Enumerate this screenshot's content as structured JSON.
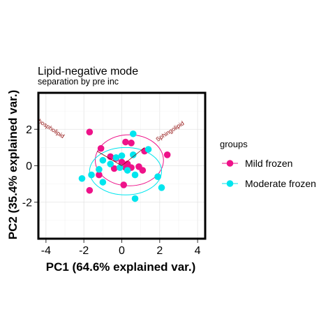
{
  "chart_data": {
    "type": "scatter",
    "title": "Lipid-negative mode",
    "subtitle": "separation by pre inc",
    "xlabel": "PC1 (64.6% explained var.)",
    "ylabel": "PC2 (35.4% explained var.)",
    "xlim": [
      -4.4,
      4.4
    ],
    "ylim": [
      -4.0,
      4.0
    ],
    "x_ticks": [
      -4,
      -2,
      0,
      2,
      4
    ],
    "y_ticks": [
      -2,
      0,
      2
    ],
    "grid": true,
    "legend_title": "groups",
    "legend_position": "right",
    "series": [
      {
        "name": "Mild frozen",
        "color": "#EE1289",
        "points": [
          [
            -1.7,
            1.85
          ],
          [
            -1.1,
            0.95
          ],
          [
            0.2,
            1.3
          ],
          [
            0.5,
            1.25
          ],
          [
            1.2,
            0.8
          ],
          [
            2.4,
            0.6
          ],
          [
            -1.7,
            -1.35
          ],
          [
            -0.6,
            0.5
          ],
          [
            -0.3,
            0.4
          ],
          [
            0.0,
            0.2
          ],
          [
            0.3,
            0.1
          ],
          [
            0.5,
            -0.1
          ],
          [
            0.9,
            -0.05
          ],
          [
            1.1,
            -0.25
          ],
          [
            0.1,
            -1.05
          ],
          [
            -1.2,
            -0.5
          ],
          [
            -0.4,
            -0.15
          ],
          [
            0.2,
            -0.1
          ]
        ]
      },
      {
        "name": "Moderate frozen",
        "color": "#00E5EE",
        "points": [
          [
            0.6,
            1.75
          ],
          [
            1.4,
            0.9
          ],
          [
            -0.3,
            0.45
          ],
          [
            0.0,
            0.55
          ],
          [
            0.6,
            0.6
          ],
          [
            -1.0,
            0.3
          ],
          [
            -0.6,
            0.1
          ],
          [
            -0.1,
            -0.1
          ],
          [
            0.3,
            -0.25
          ],
          [
            -1.2,
            -0.2
          ],
          [
            -1.6,
            -0.5
          ],
          [
            -2.1,
            -0.7
          ],
          [
            -1.0,
            -0.9
          ],
          [
            0.7,
            -0.5
          ],
          [
            1.9,
            -0.6
          ],
          [
            2.1,
            -1.2
          ],
          [
            0.7,
            -1.8
          ]
        ]
      }
    ],
    "ellipses": [
      {
        "group": "Mild frozen",
        "color": "#EE1289",
        "cx": 0.4,
        "cy": 0.3,
        "rx": 1.8,
        "ry": 1.4
      },
      {
        "group": "Moderate frozen",
        "color": "#00E5EE",
        "cx": 0.2,
        "cy": -0.3,
        "rx": 1.9,
        "ry": 1.3
      }
    ],
    "loadings": [
      {
        "label": "Glycerophospholipid",
        "x": -1.3,
        "y": 0.8,
        "text_x": -4.3,
        "text_y": 2.3,
        "color": "#8B0000"
      },
      {
        "label": "Sphingolipid",
        "x": 1.2,
        "y": 1.0,
        "text_x": 2.6,
        "text_y": 1.8,
        "color": "#8B0000"
      }
    ]
  }
}
